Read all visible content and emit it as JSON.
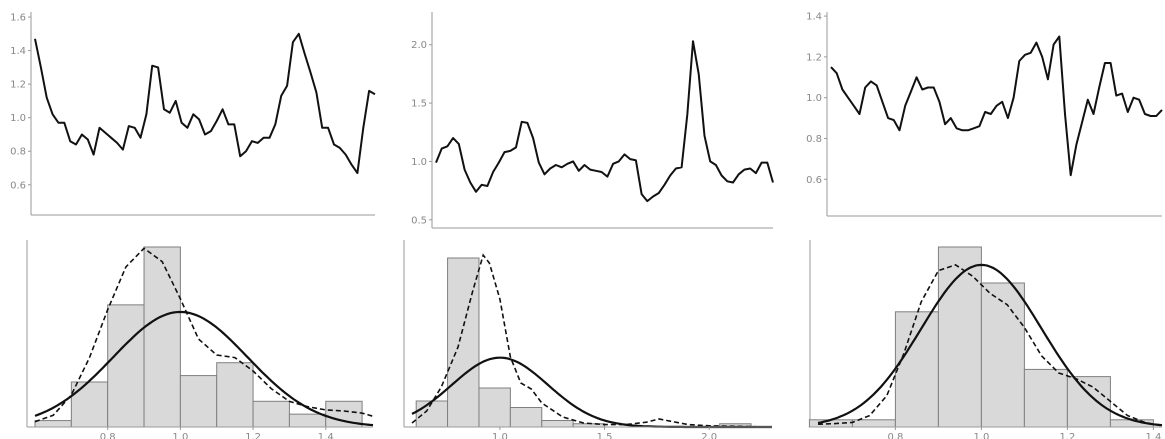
{
  "chart_data": [
    {
      "type": "line",
      "yticks": [
        "0.6",
        "0.8",
        "1.0",
        "1.2",
        "1.4",
        "1.6"
      ],
      "ylim": [
        0.42,
        1.63
      ],
      "values": [
        1.47,
        1.3,
        1.12,
        1.02,
        0.97,
        0.97,
        0.86,
        0.84,
        0.9,
        0.87,
        0.78,
        0.94,
        0.91,
        0.88,
        0.85,
        0.81,
        0.95,
        0.94,
        0.88,
        1.02,
        1.31,
        1.3,
        1.05,
        1.03,
        1.1,
        0.97,
        0.94,
        1.02,
        0.99,
        0.9,
        0.92,
        0.98,
        1.05,
        0.96,
        0.96,
        0.77,
        0.8,
        0.86,
        0.85,
        0.88,
        0.88,
        0.96,
        1.13,
        1.19,
        1.45,
        1.5,
        1.38,
        1.27,
        1.15,
        0.94,
        0.94,
        0.84,
        0.82,
        0.78,
        0.72,
        0.67,
        0.94,
        1.16,
        1.14
      ]
    },
    {
      "type": "line",
      "yticks": [
        "0.5",
        "1.0",
        "1.5",
        "2.0"
      ],
      "ylim": [
        0.43,
        2.28
      ],
      "values": [
        0.99,
        1.11,
        1.13,
        1.2,
        1.15,
        0.93,
        0.82,
        0.74,
        0.8,
        0.79,
        0.91,
        0.99,
        1.08,
        1.09,
        1.12,
        1.34,
        1.33,
        1.2,
        0.99,
        0.89,
        0.94,
        0.97,
        0.95,
        0.98,
        1.0,
        0.92,
        0.97,
        0.93,
        0.92,
        0.91,
        0.87,
        0.98,
        1.0,
        1.06,
        1.02,
        1.01,
        0.72,
        0.66,
        0.7,
        0.73,
        0.8,
        0.88,
        0.94,
        0.95,
        1.4,
        2.03,
        1.75,
        1.22,
        1.0,
        0.97,
        0.88,
        0.83,
        0.82,
        0.89,
        0.93,
        0.94,
        0.9,
        0.99,
        0.99,
        0.82
      ]
    },
    {
      "type": "line",
      "yticks": [
        "0.6",
        "0.8",
        "1.0",
        "1.2",
        "1.4"
      ],
      "ylim": [
        0.42,
        1.42
      ],
      "values": [
        1.15,
        1.12,
        1.04,
        1.0,
        0.96,
        0.92,
        1.05,
        1.08,
        1.06,
        0.98,
        0.9,
        0.89,
        0.84,
        0.96,
        1.03,
        1.1,
        1.04,
        1.05,
        1.05,
        0.98,
        0.87,
        0.9,
        0.85,
        0.84,
        0.84,
        0.85,
        0.86,
        0.93,
        0.92,
        0.96,
        0.98,
        0.9,
        1.0,
        1.18,
        1.21,
        1.22,
        1.27,
        1.2,
        1.09,
        1.26,
        1.3,
        0.92,
        0.62,
        0.77,
        0.88,
        0.99,
        0.92,
        1.05,
        1.17,
        1.17,
        1.01,
        1.02,
        0.93,
        1.0,
        0.99,
        0.92,
        0.91,
        0.91,
        0.94
      ]
    },
    {
      "type": "bar",
      "xticks": [
        "0.8",
        "1.0",
        "1.2",
        "1.4"
      ],
      "xlim": [
        0.6,
        1.53
      ],
      "bin_edges": [
        0.6,
        0.7,
        0.8,
        0.9,
        1.0,
        1.1,
        1.2,
        1.3,
        1.4,
        1.5
      ],
      "counts": [
        1,
        7,
        19,
        28,
        8,
        10,
        4,
        2,
        4
      ],
      "normal": {
        "mean": 1.0,
        "sd": 0.185
      },
      "kde_x": [
        0.6,
        0.65,
        0.7,
        0.75,
        0.8,
        0.85,
        0.9,
        0.95,
        1.0,
        1.05,
        1.1,
        1.15,
        1.2,
        1.25,
        1.3,
        1.35,
        1.4,
        1.45,
        1.5,
        1.53
      ],
      "kde_y": [
        0.1,
        0.22,
        0.6,
        1.3,
        2.2,
        3.0,
        3.35,
        3.1,
        2.4,
        1.65,
        1.35,
        1.3,
        1.05,
        0.72,
        0.48,
        0.38,
        0.32,
        0.3,
        0.26,
        0.2
      ]
    },
    {
      "type": "bar",
      "xticks": [
        "1.0",
        "1.5",
        "2.0"
      ],
      "xlim": [
        0.58,
        2.3
      ],
      "bin_edges": [
        0.6,
        0.75,
        0.9,
        1.05,
        1.2,
        1.35,
        1.5,
        2.05,
        2.2
      ],
      "counts": [
        4,
        26,
        6,
        3,
        1,
        0.5,
        0,
        0.5
      ],
      "normal": {
        "mean": 1.0,
        "sd": 0.23
      },
      "kde_x": [
        0.58,
        0.65,
        0.72,
        0.8,
        0.87,
        0.92,
        0.95,
        1.0,
        1.05,
        1.1,
        1.15,
        1.2,
        1.3,
        1.4,
        1.5,
        1.6,
        1.7,
        1.76,
        1.82,
        1.9,
        2.0,
        2.1,
        2.2,
        2.3
      ],
      "kde_y": [
        0.1,
        0.4,
        1.0,
        2.0,
        3.4,
        4.3,
        4.1,
        3.2,
        1.75,
        1.1,
        0.95,
        0.6,
        0.25,
        0.1,
        0.06,
        0.06,
        0.12,
        0.2,
        0.14,
        0.06,
        0.03,
        0.02,
        0.01,
        0.0
      ]
    },
    {
      "type": "bar",
      "xticks": [
        "0.8",
        "1.0",
        "1.2",
        "1.4"
      ],
      "xlim": [
        0.62,
        1.42
      ],
      "bin_edges": [
        0.6,
        0.7,
        0.8,
        0.9,
        1.0,
        1.1,
        1.2,
        1.3,
        1.4
      ],
      "counts": [
        1,
        1,
        16,
        25,
        20,
        8,
        7,
        1
      ],
      "normal": {
        "mean": 1.0,
        "sd": 0.14
      },
      "kde_x": [
        0.62,
        0.66,
        0.7,
        0.74,
        0.78,
        0.82,
        0.86,
        0.9,
        0.94,
        0.98,
        1.02,
        1.06,
        1.1,
        1.14,
        1.18,
        1.22,
        1.26,
        1.3,
        1.34,
        1.38,
        1.42
      ],
      "kde_y": [
        0.05,
        0.06,
        0.08,
        0.2,
        0.55,
        1.3,
        2.2,
        2.75,
        2.85,
        2.65,
        2.35,
        2.15,
        1.75,
        1.25,
        0.95,
        0.85,
        0.7,
        0.45,
        0.2,
        0.08,
        0.02
      ]
    }
  ]
}
